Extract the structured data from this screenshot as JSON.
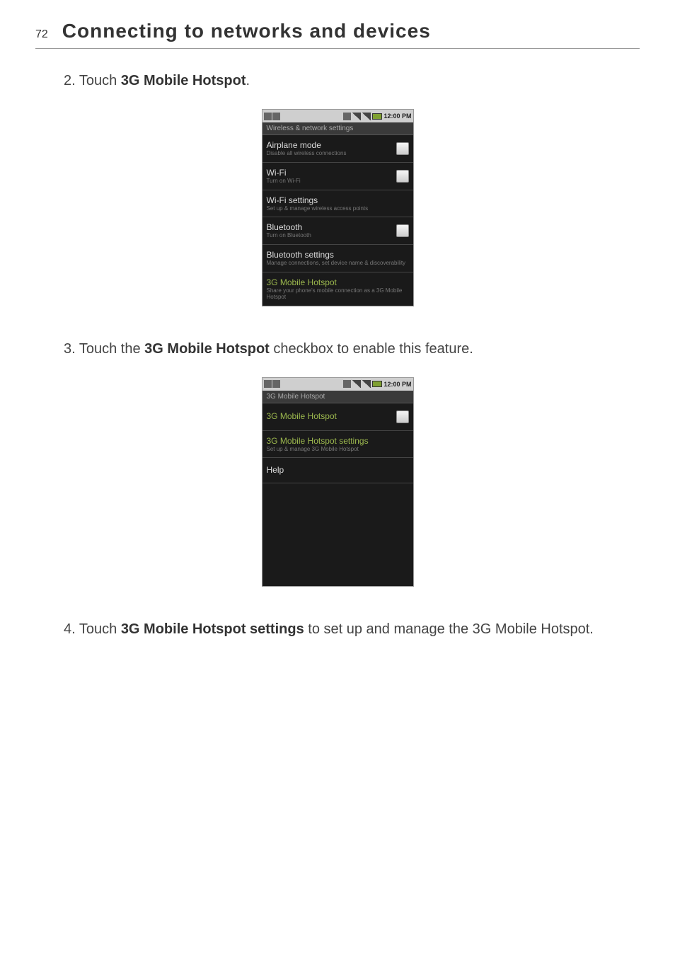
{
  "header": {
    "page_number": "72",
    "title": "Connecting to networks and devices"
  },
  "steps": {
    "step2_prefix": "2. Touch ",
    "step2_bold": "3G Mobile Hotspot",
    "step2_suffix": ".",
    "step3_prefix": "3. Touch the ",
    "step3_bold": "3G Mobile Hotspot",
    "step3_suffix": " checkbox to enable this feature.",
    "step4_prefix": "4. Touch ",
    "step4_bold": "3G Mobile Hotspot settings",
    "step4_suffix": " to set up and manage the 3G Mobile Hotspot."
  },
  "screenshot1": {
    "time": "12:00 PM",
    "section_header": "Wireless & network settings",
    "rows": [
      {
        "title": "Airplane mode",
        "subtitle": "Disable all wireless connections",
        "has_checkbox": true
      },
      {
        "title": "Wi-Fi",
        "subtitle": "Turn on Wi-Fi",
        "has_checkbox": true
      },
      {
        "title": "Wi-Fi settings",
        "subtitle": "Set up & manage wireless access points",
        "has_checkbox": false
      },
      {
        "title": "Bluetooth",
        "subtitle": "Turn on Bluetooth",
        "has_checkbox": true
      },
      {
        "title": "Bluetooth settings",
        "subtitle": "Manage connections, set device name & discoverability",
        "has_checkbox": false
      },
      {
        "title": "3G Mobile Hotspot",
        "subtitle": "Share your phone's mobile connection as a 3G Mobile Hotspot",
        "has_checkbox": false,
        "green": true
      }
    ]
  },
  "screenshot2": {
    "time": "12:00 PM",
    "section_header": "3G Mobile Hotspot",
    "rows": [
      {
        "title": "3G Mobile Hotspot",
        "subtitle": "",
        "has_checkbox": true,
        "green": true
      },
      {
        "title": "3G Mobile Hotspot settings",
        "subtitle": "Set up & manage 3G Mobile Hotspot",
        "has_checkbox": false,
        "green": true
      },
      {
        "title": "Help",
        "subtitle": "",
        "has_checkbox": false
      }
    ]
  }
}
